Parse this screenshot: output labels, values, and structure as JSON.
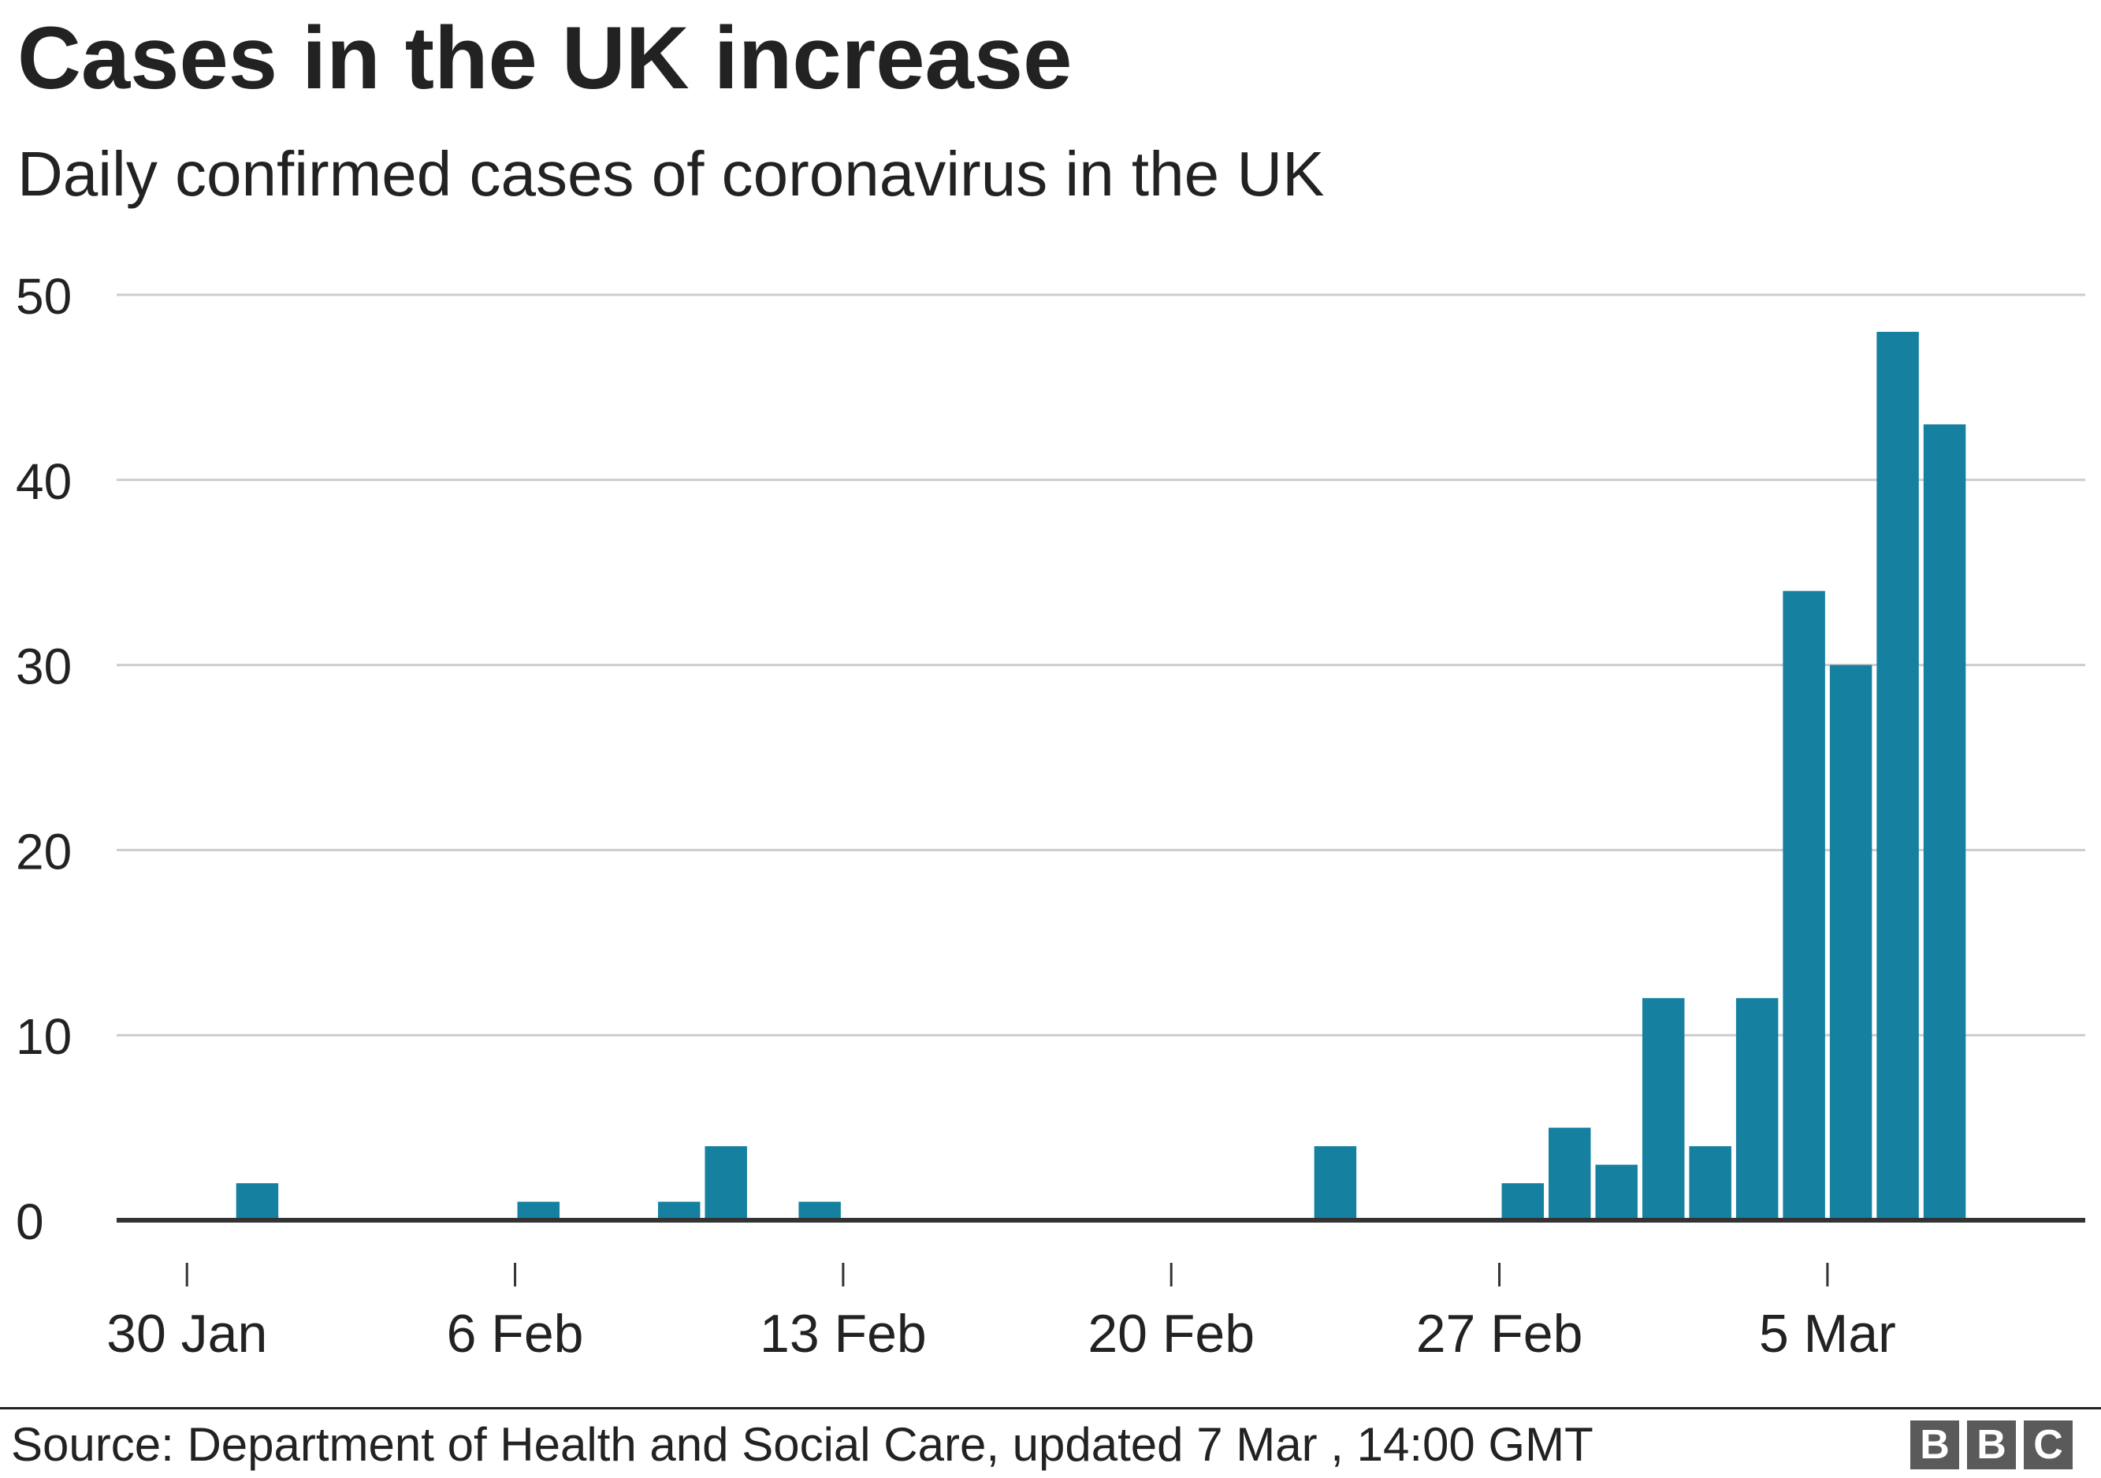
{
  "title": "Cases in the UK increase",
  "subtitle": "Daily confirmed cases of coronavirus in the UK",
  "source": "Source: Department of Health and Social Care, updated 7 Mar , 14:00 GMT",
  "logo_letters": [
    "B",
    "B",
    "C"
  ],
  "colors": {
    "bar": "#1580a0",
    "grid": "#cccccc",
    "axis": "#333333",
    "text": "#222222"
  },
  "chart_data": {
    "type": "bar",
    "title": "Cases in the UK increase",
    "subtitle": "Daily confirmed cases of coronavirus in the UK",
    "xlabel": "",
    "ylabel": "",
    "ylim": [
      0,
      50
    ],
    "yticks": [
      0,
      10,
      20,
      30,
      40,
      50
    ],
    "grid": true,
    "legend": "none",
    "xticks": [
      {
        "label": "30 Jan",
        "day": 0
      },
      {
        "label": "6 Feb",
        "day": 7
      },
      {
        "label": "13 Feb",
        "day": 14
      },
      {
        "label": "20 Feb",
        "day": 21
      },
      {
        "label": "27 Feb",
        "day": 28
      },
      {
        "label": "5 Mar",
        "day": 35
      }
    ],
    "day_range": [
      -2,
      40
    ],
    "categories": [
      "31 Jan",
      "6 Feb",
      "9 Feb",
      "10 Feb",
      "12 Feb",
      "23 Feb",
      "27 Feb",
      "28 Feb",
      "29 Feb",
      "1 Mar",
      "2 Mar",
      "3 Mar",
      "4 Mar",
      "5 Mar",
      "6 Mar",
      "7 Mar",
      "8 Mar"
    ],
    "days": [
      1,
      7,
      10,
      11,
      13,
      24,
      28,
      29,
      30,
      31,
      32,
      33,
      34,
      35,
      36,
      37,
      38
    ],
    "values": [
      2,
      1,
      1,
      4,
      1,
      4,
      2,
      5,
      3,
      12,
      4,
      12,
      34,
      30,
      48,
      43,
      0
    ]
  }
}
